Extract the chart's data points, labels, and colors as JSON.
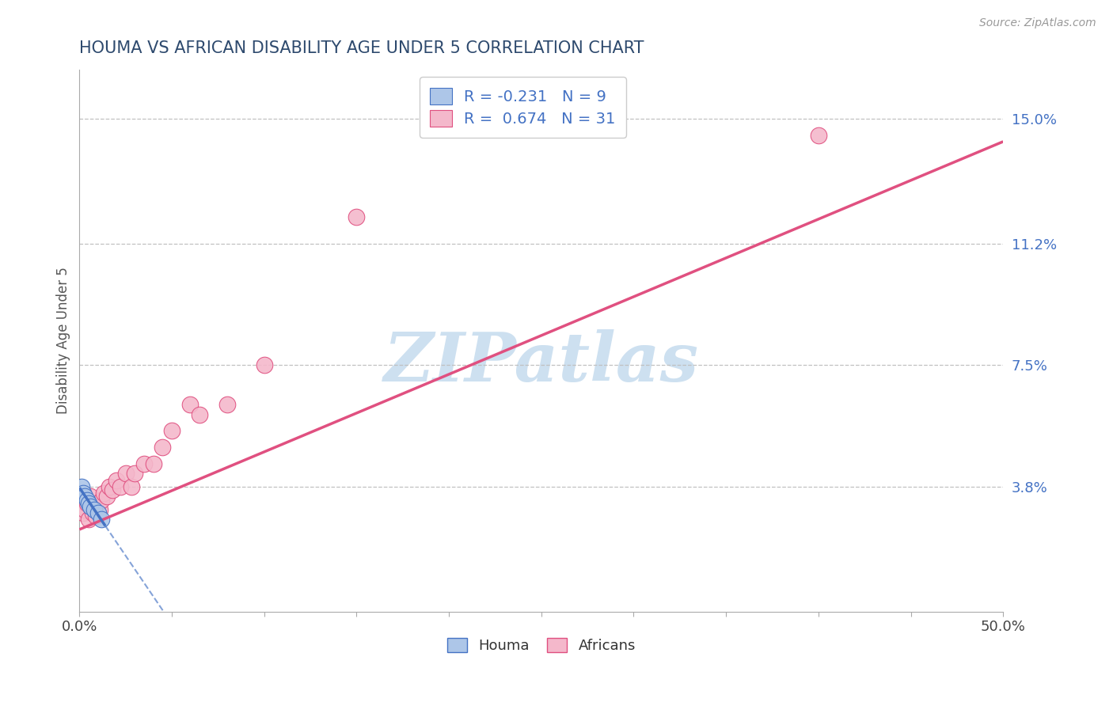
{
  "title": "HOUMA VS AFRICAN DISABILITY AGE UNDER 5 CORRELATION CHART",
  "source_text": "Source: ZipAtlas.com",
  "ylabel": "Disability Age Under 5",
  "xlim": [
    0.0,
    0.5
  ],
  "ylim": [
    0.0,
    0.165
  ],
  "ytick_positions": [
    0.038,
    0.075,
    0.112,
    0.15
  ],
  "ytick_labels": [
    "3.8%",
    "7.5%",
    "11.2%",
    "15.0%"
  ],
  "houma_x": [
    0.001,
    0.002,
    0.003,
    0.004,
    0.005,
    0.006,
    0.008,
    0.01,
    0.012
  ],
  "houma_y": [
    0.038,
    0.036,
    0.035,
    0.034,
    0.033,
    0.032,
    0.031,
    0.03,
    0.028
  ],
  "african_x": [
    0.001,
    0.002,
    0.003,
    0.004,
    0.005,
    0.006,
    0.007,
    0.008,
    0.009,
    0.01,
    0.011,
    0.012,
    0.013,
    0.015,
    0.016,
    0.018,
    0.02,
    0.022,
    0.025,
    0.028,
    0.03,
    0.035,
    0.04,
    0.045,
    0.05,
    0.06,
    0.065,
    0.08,
    0.1,
    0.15,
    0.4
  ],
  "african_y": [
    0.032,
    0.03,
    0.031,
    0.033,
    0.028,
    0.035,
    0.03,
    0.032,
    0.029,
    0.033,
    0.031,
    0.034,
    0.036,
    0.035,
    0.038,
    0.037,
    0.04,
    0.038,
    0.042,
    0.038,
    0.042,
    0.045,
    0.045,
    0.05,
    0.055,
    0.063,
    0.06,
    0.063,
    0.075,
    0.12,
    0.145
  ],
  "houma_R": -0.231,
  "houma_N": 9,
  "african_R": 0.674,
  "african_N": 31,
  "houma_color": "#adc6e8",
  "houma_line_color": "#4472c4",
  "african_color": "#f4b8cb",
  "african_line_color": "#e05080",
  "title_color": "#2e4a6e",
  "axis_tick_color": "#4472c4",
  "watermark_color": "#cde0f0",
  "background_color": "#ffffff",
  "grid_color": "#c0c0c0",
  "source_color": "#999999",
  "houma_line_solid_end": 0.014,
  "houma_line_dash_end": 0.18,
  "african_line_start_x": 0.0,
  "african_line_end_x": 0.5,
  "african_line_start_y": 0.025,
  "african_line_end_y": 0.143
}
